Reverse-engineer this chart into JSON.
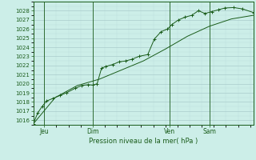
{
  "xlabel": "Pression niveau de la mer( hPa )",
  "background_color": "#cceee8",
  "grid_color_major": "#aacccc",
  "grid_color_minor": "#bbdddd",
  "line_color": "#1a5c1a",
  "ylim": [
    1015.5,
    1029.0
  ],
  "yticks": [
    1016,
    1017,
    1018,
    1019,
    1020,
    1021,
    1022,
    1023,
    1024,
    1025,
    1026,
    1027,
    1028
  ],
  "xtick_labels": [
    "Jeu",
    "Dim",
    "Ven",
    "Sam"
  ],
  "xtick_positions": [
    0.05,
    0.27,
    0.62,
    0.8
  ],
  "vline_positions": [
    0.05,
    0.27,
    0.62,
    0.8
  ],
  "line1_x": [
    0.0,
    0.02,
    0.04,
    0.06,
    0.09,
    0.12,
    0.15,
    0.19,
    0.22,
    0.25,
    0.27,
    0.29,
    0.31,
    0.33,
    0.36,
    0.39,
    0.42,
    0.45,
    0.48,
    0.52,
    0.55,
    0.58,
    0.61,
    0.63,
    0.66,
    0.69,
    0.72,
    0.75,
    0.78,
    0.81,
    0.84,
    0.87,
    0.91,
    0.95,
    1.0
  ],
  "line1_y": [
    1015.6,
    1016.8,
    1017.5,
    1018.1,
    1018.4,
    1018.7,
    1019.0,
    1019.5,
    1019.8,
    1019.9,
    1019.85,
    1020.0,
    1021.7,
    1021.9,
    1022.1,
    1022.4,
    1022.5,
    1022.7,
    1023.0,
    1023.2,
    1024.9,
    1025.7,
    1026.0,
    1026.5,
    1027.0,
    1027.3,
    1027.5,
    1028.0,
    1027.7,
    1027.9,
    1028.1,
    1028.3,
    1028.35,
    1028.2,
    1027.8
  ],
  "line2_x": [
    0.0,
    0.1,
    0.2,
    0.3,
    0.4,
    0.5,
    0.6,
    0.7,
    0.8,
    0.9,
    1.0
  ],
  "line2_y": [
    1015.6,
    1018.5,
    1019.8,
    1020.5,
    1021.5,
    1022.5,
    1023.8,
    1025.2,
    1026.3,
    1027.1,
    1027.5
  ]
}
